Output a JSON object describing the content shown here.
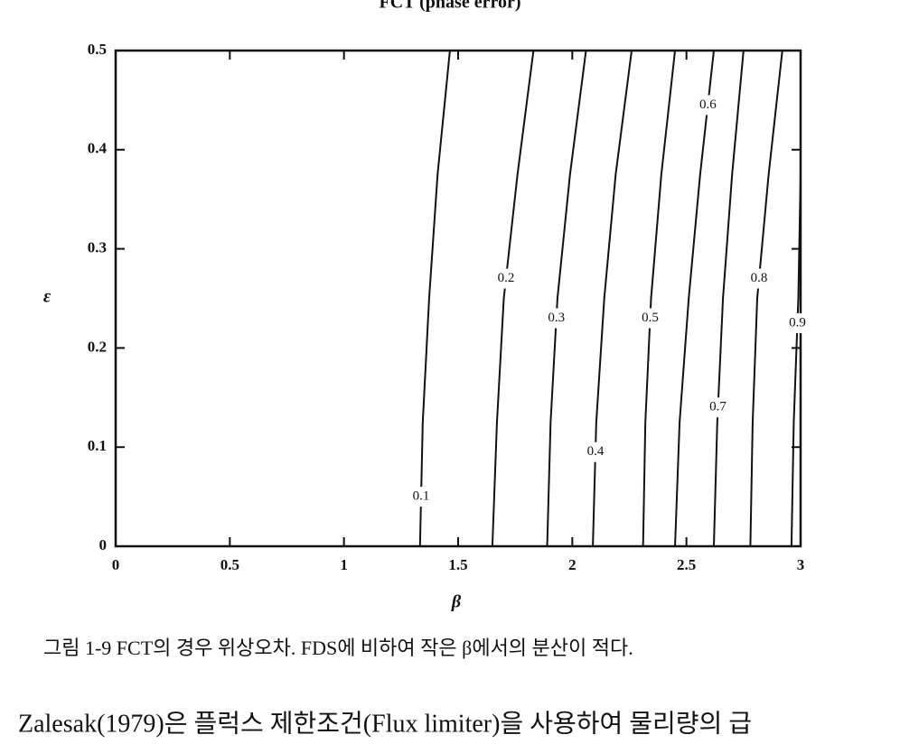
{
  "chart_data": {
    "type": "contour",
    "title": "FCT (phase error)",
    "x_label": "β",
    "y_label": "ε",
    "xlim": [
      0,
      3
    ],
    "ylim": [
      0,
      0.5
    ],
    "xticks": [
      0,
      0.5,
      1,
      1.5,
      2,
      2.5,
      3
    ],
    "yticks": [
      0,
      0.1,
      0.2,
      0.3,
      0.4,
      0.5
    ],
    "color": "#111111",
    "epsilon": [
      0,
      0.125,
      0.25,
      0.375,
      0.5
    ],
    "contours": [
      {
        "level": 0.1,
        "beta": [
          1.333,
          1.345,
          1.373,
          1.41,
          1.464
        ]
      },
      {
        "level": 0.2,
        "beta": [
          1.65,
          1.67,
          1.7,
          1.76,
          1.83
        ]
      },
      {
        "level": 0.3,
        "beta": [
          1.89,
          1.905,
          1.935,
          1.99,
          2.06
        ]
      },
      {
        "level": 0.4,
        "beta": [
          2.09,
          2.105,
          2.14,
          2.19,
          2.26
        ]
      },
      {
        "level": 0.5,
        "beta": [
          2.31,
          2.32,
          2.345,
          2.39,
          2.45
        ]
      },
      {
        "level": 0.6,
        "beta": [
          2.45,
          2.47,
          2.51,
          2.56,
          2.62
        ]
      },
      {
        "level": 0.7,
        "beta": [
          2.62,
          2.635,
          2.66,
          2.7,
          2.75
        ]
      },
      {
        "level": 0.8,
        "beta": [
          2.78,
          2.79,
          2.81,
          2.86,
          2.92
        ]
      },
      {
        "level": 0.9,
        "beta": [
          2.96,
          2.97,
          2.99,
          3.0,
          3.0
        ]
      }
    ]
  },
  "caption": "그림 1-9  FCT의 경우 위상오차. FDS에 비하여 작은 β에서의 분산이 적다.",
  "body_text": "Zalesak(1979)은 플럭스 제한조건(Flux limiter)을 사용하여 물리량의 급"
}
